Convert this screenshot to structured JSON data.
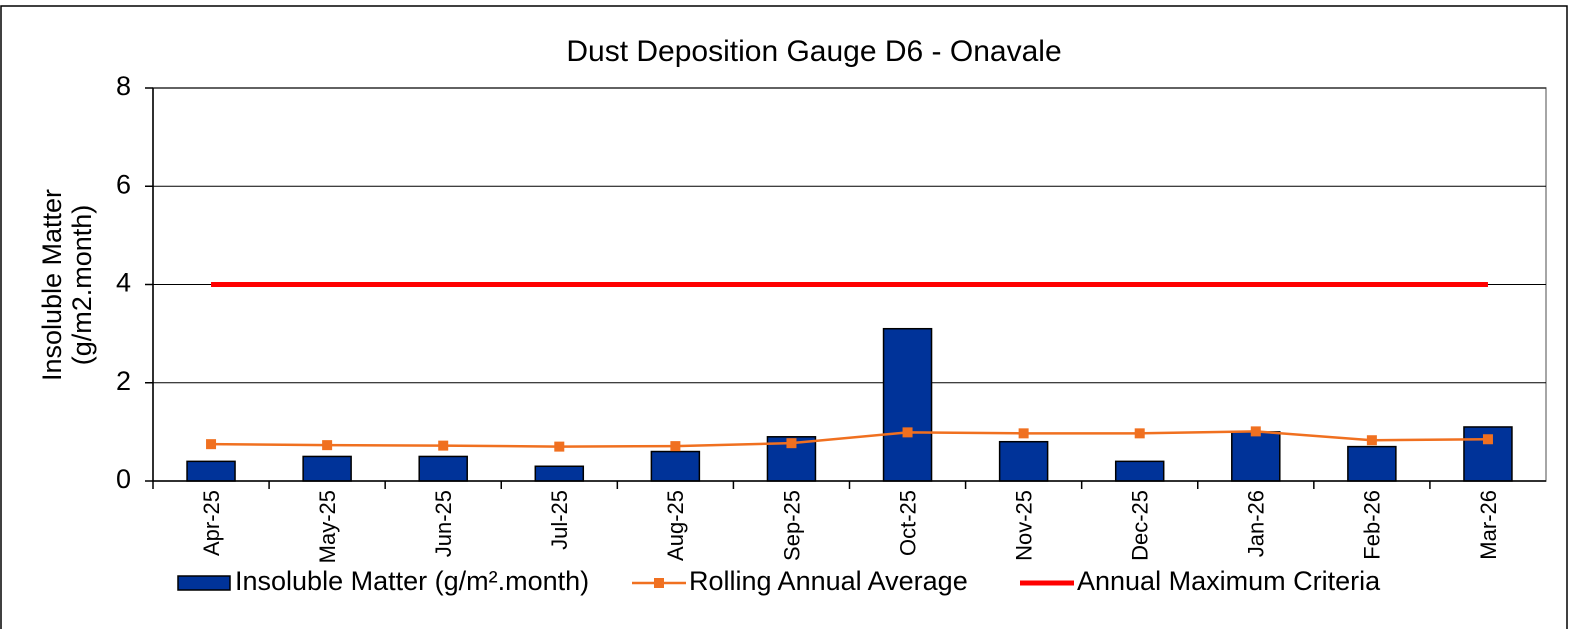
{
  "chart_data": {
    "type": "bar",
    "title": "Dust Deposition Gauge D6 - Onavale",
    "y_label": [
      "Insoluble Matter",
      "(g/m2.month)"
    ],
    "categories": [
      "Apr-25",
      "May-25",
      "Jun-25",
      "Jul-25",
      "Aug-25",
      "Sep-25",
      "Oct-25",
      "Nov-25",
      "Dec-25",
      "Jan-26",
      "Feb-26",
      "Mar-26"
    ],
    "series": [
      {
        "name": "Insoluble Matter (g/m².month)",
        "type": "bar",
        "color": "#003399",
        "values": [
          0.4,
          0.5,
          0.5,
          0.3,
          0.6,
          0.9,
          3.1,
          0.8,
          0.4,
          1.0,
          0.7,
          1.1
        ]
      },
      {
        "name": "Rolling Annual Average",
        "type": "line",
        "marker": "square",
        "color": "#f07020",
        "values": [
          0.75,
          0.73,
          0.72,
          0.7,
          0.71,
          0.77,
          0.99,
          0.97,
          0.97,
          1.01,
          0.83,
          0.85
        ]
      },
      {
        "name": "Annual Maximum Criteria",
        "type": "line",
        "color": "#ff0000",
        "values": [
          4,
          4,
          4,
          4,
          4,
          4,
          4,
          4,
          4,
          4,
          4,
          4
        ]
      }
    ],
    "ylim": [
      0,
      8
    ],
    "yticks": [
      0,
      2,
      4,
      6,
      8
    ],
    "grid": true,
    "legend": "bottom"
  }
}
